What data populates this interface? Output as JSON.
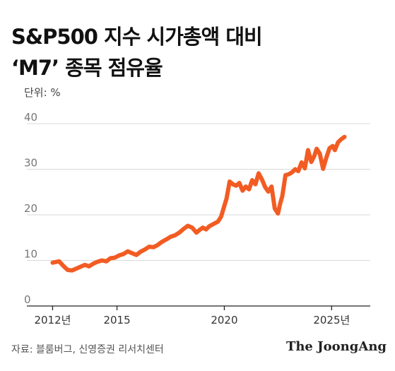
{
  "chart_data": {
    "type": "line",
    "title": "S&P500 지수 시가총액 대비\n‘M7’ 종목 점유율",
    "unit_label": "단위: %",
    "ylim": [
      0,
      40
    ],
    "y_ticks": [
      0,
      10,
      20,
      30,
      40
    ],
    "x_ticks": [
      {
        "value": 2012,
        "label": "2012년"
      },
      {
        "value": 2015,
        "label": "2015"
      },
      {
        "value": 2020,
        "label": "2020"
      },
      {
        "value": 2025,
        "label": "2025년"
      }
    ],
    "xlim": [
      2010.8,
      2026.8
    ],
    "grid": true,
    "color": "#f25c23",
    "series": [
      {
        "x": [
          2012.0,
          2012.3,
          2012.5,
          2012.7,
          2012.9,
          2013.1,
          2013.3,
          2013.5,
          2013.7,
          2013.9,
          2014.1,
          2014.3,
          2014.5,
          2014.7,
          2014.9,
          2015.1,
          2015.3,
          2015.5,
          2015.7,
          2015.9,
          2016.1,
          2016.3,
          2016.5,
          2016.7,
          2016.9,
          2017.1,
          2017.3,
          2017.5,
          2017.7,
          2017.9,
          2018.1,
          2018.3,
          2018.5,
          2018.7,
          2018.85,
          2019.0,
          2019.15,
          2019.3,
          2019.5,
          2019.7,
          2019.85,
          2020.0,
          2020.1,
          2020.25,
          2020.4,
          2020.55,
          2020.7,
          2020.85,
          2021.0,
          2021.15,
          2021.3,
          2021.45,
          2021.6,
          2021.75,
          2021.9,
          2022.05,
          2022.2,
          2022.35,
          2022.5,
          2022.6,
          2022.7,
          2022.85,
          2023.0,
          2023.15,
          2023.3,
          2023.45,
          2023.6,
          2023.75,
          2023.9,
          2024.05,
          2024.2,
          2024.3,
          2024.45,
          2024.6,
          2024.75,
          2024.9,
          2025.05,
          2025.15,
          2025.3,
          2025.45,
          2025.6
        ],
        "y": [
          9.5,
          9.8,
          8.8,
          7.9,
          7.8,
          8.2,
          8.6,
          9.0,
          8.7,
          9.3,
          9.7,
          10.0,
          9.8,
          10.5,
          10.6,
          11.1,
          11.4,
          12.0,
          11.6,
          11.2,
          11.9,
          12.4,
          13.0,
          12.9,
          13.4,
          14.1,
          14.6,
          15.2,
          15.5,
          16.1,
          16.9,
          17.6,
          17.2,
          16.1,
          16.7,
          17.2,
          16.8,
          17.5,
          18.0,
          18.5,
          19.6,
          22.0,
          23.5,
          27.3,
          26.7,
          26.4,
          27.0,
          25.3,
          26.2,
          25.6,
          27.6,
          26.7,
          29.1,
          27.8,
          26.1,
          25.1,
          26.2,
          21.4,
          20.3,
          22.4,
          24.1,
          28.7,
          28.9,
          29.3,
          30.0,
          29.6,
          31.5,
          30.2,
          34.2,
          31.6,
          33.0,
          34.5,
          33.4,
          30.1,
          32.5,
          34.6,
          35.1,
          34.2,
          35.9,
          36.6,
          37.1
        ]
      }
    ]
  },
  "source": "자료: 블룸버그, 신영증권 리서치센터",
  "brand": "The JoongAng"
}
